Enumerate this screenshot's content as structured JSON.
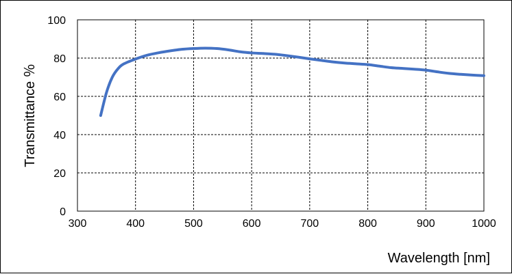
{
  "chart_data": {
    "type": "line",
    "title": "",
    "xlabel": "Wavelength [nm]",
    "ylabel": "Transmittance ％",
    "xlim": [
      300,
      1000
    ],
    "ylim": [
      0,
      100
    ],
    "x_ticks": [
      "300",
      "400",
      "500",
      "600",
      "700",
      "800",
      "900",
      "1000"
    ],
    "y_ticks": [
      "0",
      "20",
      "40",
      "60",
      "80",
      "100"
    ],
    "grid": true,
    "grid_style": "dashed",
    "legend": "none",
    "line_color": "#4472C4",
    "series": [
      {
        "x": [
          340,
          350,
          360,
          370,
          380,
          400,
          420,
          440,
          460,
          480,
          500,
          520,
          540,
          560,
          580,
          600,
          620,
          640,
          660,
          680,
          700,
          720,
          740,
          760,
          780,
          800,
          820,
          840,
          860,
          880,
          900,
          920,
          940,
          960,
          980,
          1000
        ],
        "values": [
          50,
          62,
          70,
          74.5,
          77,
          79.5,
          81.5,
          82.8,
          83.8,
          84.6,
          85,
          85.2,
          85,
          84.3,
          83.3,
          82.7,
          82.4,
          82,
          81.3,
          80.5,
          79.6,
          78.8,
          78,
          77.4,
          77,
          76.6,
          75.8,
          75,
          74.6,
          74.2,
          73.7,
          72.8,
          72,
          71.5,
          71.1,
          70.8
        ]
      }
    ]
  }
}
